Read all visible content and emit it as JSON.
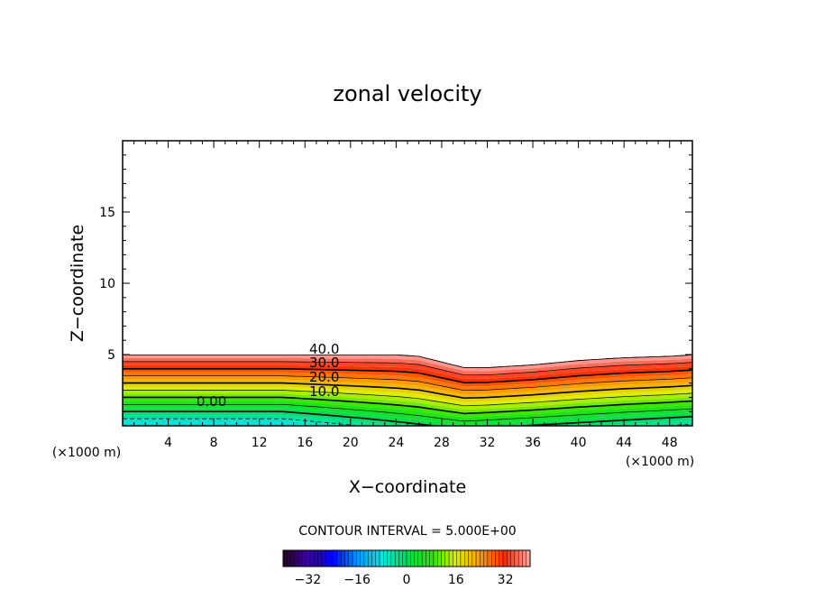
{
  "chart_data": {
    "type": "heatmap",
    "title": "zonal velocity",
    "xlabel": "X−coordinate",
    "ylabel": "Z−coordinate",
    "x_unit_left": "(×1000 m)",
    "x_unit_right": "(×1000 m)",
    "xlim": [
      0,
      50
    ],
    "ylim": [
      0,
      20
    ],
    "xticks": [
      4,
      8,
      12,
      16,
      20,
      24,
      28,
      32,
      36,
      40,
      44,
      48
    ],
    "yticks": [
      5,
      10,
      15
    ],
    "contour_interval_text": "CONTOUR INTERVAL = 5.000E+00",
    "contour_labels": [
      "40.0",
      "30.0",
      "20.0",
      "10.0",
      "0.00"
    ],
    "colorbar": {
      "range": [
        -40,
        40
      ],
      "ticks": [
        -32,
        -16,
        0,
        16,
        32
      ],
      "tick_labels": [
        "−32",
        "−16",
        "0",
        "16",
        "32"
      ]
    },
    "top_boundary": {
      "x": [
        0,
        4,
        8,
        12,
        16,
        20,
        24,
        26,
        28,
        30,
        32,
        34,
        36,
        40,
        44,
        48,
        50
      ],
      "z": [
        5.0,
        5.0,
        5.0,
        5.0,
        5.0,
        5.0,
        5.0,
        4.9,
        4.5,
        4.1,
        4.1,
        4.2,
        4.3,
        4.6,
        4.8,
        4.9,
        5.0
      ]
    },
    "velocity_max_surface": 40,
    "velocity_min_bottom": -10
  }
}
